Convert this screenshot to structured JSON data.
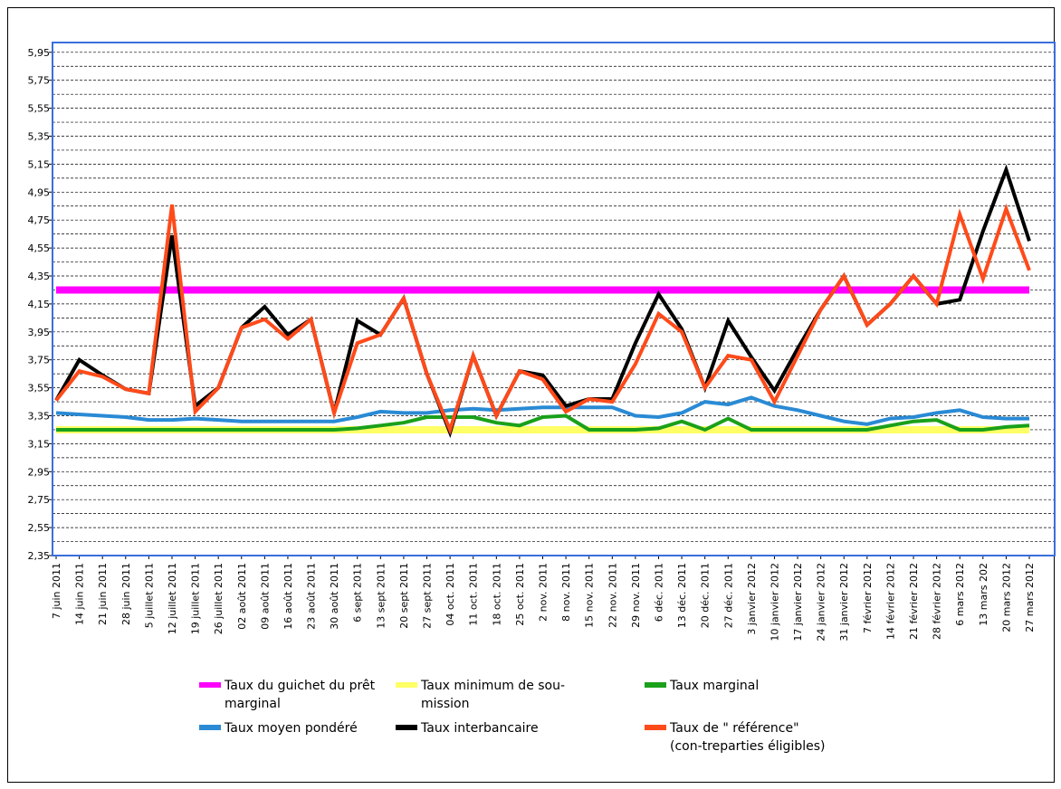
{
  "chart_data": {
    "type": "line",
    "categories": [
      "7 juin 2011",
      "14 juin 2011",
      "21 juin 2011",
      "28 juin 2011",
      "5 juillet 2011",
      "12 juillet 2011",
      "19 juillet 2011",
      "26 juillet 2011",
      "02 août 2011",
      "09 août 2011",
      "16 août 2011",
      "23 août 2011",
      "30 août 2011",
      "6 sept 2011",
      "13 sept 2011",
      "20 sept 2011",
      "27 sept 2011",
      "04 oct. 2011",
      "11 oct. 2011",
      "18 oct. 2011",
      "25 oct. 2011",
      "2 nov. 2011",
      "8 nov. 2011",
      "15 nov. 2011",
      "22 nov. 2011",
      "29 nov. 2011",
      "6 déc. 2011",
      "13 déc. 2011",
      "20 déc. 2011",
      "27 déc. 2011",
      "3 janvier 2012",
      "10 janvier 2012",
      "17 janvier 2012",
      "24 janvier 2012",
      "31 janvier 2012",
      "7 février 2012",
      "14 février 2012",
      "21 février 2012",
      "28 février 2012",
      "6 mars 2012",
      "13 mars 202",
      "20 mars 2012",
      "27 mars 2012"
    ],
    "series": [
      {
        "name": "Taux du guichet du prêt marginal",
        "color": "#ff00ff",
        "width": 8,
        "values": [
          4.25,
          4.25,
          4.25,
          4.25,
          4.25,
          4.25,
          4.25,
          4.25,
          4.25,
          4.25,
          4.25,
          4.25,
          4.25,
          4.25,
          4.25,
          4.25,
          4.25,
          4.25,
          4.25,
          4.25,
          4.25,
          4.25,
          4.25,
          4.25,
          4.25,
          4.25,
          4.25,
          4.25,
          4.25,
          4.25,
          4.25,
          4.25,
          4.25,
          4.25,
          4.25,
          4.25,
          4.25,
          4.25,
          4.25,
          4.25,
          4.25,
          4.25,
          4.25
        ]
      },
      {
        "name": "Taux minimum de sou-mission",
        "color": "#ffff66",
        "width": 8,
        "values": [
          3.25,
          3.25,
          3.25,
          3.25,
          3.25,
          3.25,
          3.25,
          3.25,
          3.25,
          3.25,
          3.25,
          3.25,
          3.25,
          3.25,
          3.25,
          3.25,
          3.25,
          3.25,
          3.25,
          3.25,
          3.25,
          3.25,
          3.25,
          3.25,
          3.25,
          3.25,
          3.25,
          3.25,
          3.25,
          3.25,
          3.25,
          3.25,
          3.25,
          3.25,
          3.25,
          3.25,
          3.25,
          3.25,
          3.25,
          3.25,
          3.25,
          3.25,
          3.25
        ]
      },
      {
        "name": "Taux marginal",
        "color": "#1aa01a",
        "width": 4,
        "values": [
          3.25,
          3.25,
          3.25,
          3.25,
          3.25,
          3.25,
          3.25,
          3.25,
          3.25,
          3.25,
          3.25,
          3.25,
          3.25,
          3.26,
          3.28,
          3.3,
          3.34,
          3.34,
          3.34,
          3.3,
          3.28,
          3.34,
          3.35,
          3.25,
          3.25,
          3.25,
          3.26,
          3.31,
          3.25,
          3.33,
          3.25,
          3.25,
          3.25,
          3.25,
          3.25,
          3.25,
          3.28,
          3.31,
          3.32,
          3.25,
          3.25,
          3.27,
          3.28
        ]
      },
      {
        "name": "Taux moyen pondéré",
        "color": "#2a8ad4",
        "width": 4,
        "values": [
          3.37,
          3.36,
          3.35,
          3.34,
          3.32,
          3.32,
          3.33,
          3.32,
          3.31,
          3.31,
          3.31,
          3.31,
          3.31,
          3.34,
          3.38,
          3.37,
          3.37,
          3.39,
          3.4,
          3.39,
          3.4,
          3.41,
          3.41,
          3.41,
          3.41,
          3.35,
          3.34,
          3.37,
          3.45,
          3.43,
          3.48,
          3.42,
          3.39,
          3.35,
          3.31,
          3.29,
          3.33,
          3.34,
          3.37,
          3.39,
          3.34,
          3.33,
          3.33
        ]
      },
      {
        "name": "Taux interbancaire",
        "color": "#000000",
        "width": 4,
        "values": [
          3.46,
          3.75,
          3.64,
          3.54,
          3.51,
          4.64,
          3.42,
          3.55,
          3.98,
          4.13,
          3.93,
          4.04,
          3.37,
          4.03,
          3.93,
          4.19,
          3.65,
          3.23,
          3.78,
          3.35,
          3.67,
          3.64,
          3.42,
          3.47,
          3.47,
          3.87,
          4.22,
          3.97,
          3.55,
          4.03,
          3.77,
          3.53,
          3.83,
          4.11,
          4.35,
          4.0,
          4.15,
          4.35,
          4.15,
          4.18,
          4.67,
          5.11,
          4.6
        ]
      },
      {
        "name": "Taux de \" référence\" (con-treparties éligibles)",
        "color": "#ff4a1a",
        "width": 4,
        "values": [
          3.46,
          3.67,
          3.63,
          3.54,
          3.51,
          4.86,
          3.38,
          3.55,
          3.98,
          4.04,
          3.9,
          4.04,
          3.37,
          3.87,
          3.93,
          4.19,
          3.65,
          3.25,
          3.78,
          3.35,
          3.67,
          3.61,
          3.38,
          3.47,
          3.45,
          3.72,
          4.08,
          3.95,
          3.55,
          3.78,
          3.75,
          3.45,
          3.78,
          4.11,
          4.35,
          4.0,
          4.15,
          4.35,
          4.15,
          4.79,
          4.33,
          4.83,
          4.39
        ]
      }
    ],
    "ylim": [
      2.35,
      6.02
    ],
    "yticks": [
      {
        "value": 2.35,
        "label": "2,35"
      },
      {
        "value": 2.55,
        "label": "2,55"
      },
      {
        "value": 2.75,
        "label": "2,75"
      },
      {
        "value": 2.95,
        "label": "2,95"
      },
      {
        "value": 3.15,
        "label": "3,15"
      },
      {
        "value": 3.35,
        "label": "3,35"
      },
      {
        "value": 3.55,
        "label": "3,55"
      },
      {
        "value": 3.75,
        "label": "3,75"
      },
      {
        "value": 3.95,
        "label": "3,95"
      },
      {
        "value": 4.15,
        "label": "4,15"
      },
      {
        "value": 4.35,
        "label": "4,35"
      },
      {
        "value": 4.55,
        "label": "4,55"
      },
      {
        "value": 4.75,
        "label": "4,75"
      },
      {
        "value": 4.95,
        "label": "4,95"
      },
      {
        "value": 5.15,
        "label": "5,15"
      },
      {
        "value": 5.35,
        "label": "5,35"
      },
      {
        "value": 5.55,
        "label": "5,55"
      },
      {
        "value": 5.75,
        "label": "5,75"
      },
      {
        "value": 5.95,
        "label": "5,95"
      }
    ],
    "grid": true,
    "legend": "bottom"
  }
}
